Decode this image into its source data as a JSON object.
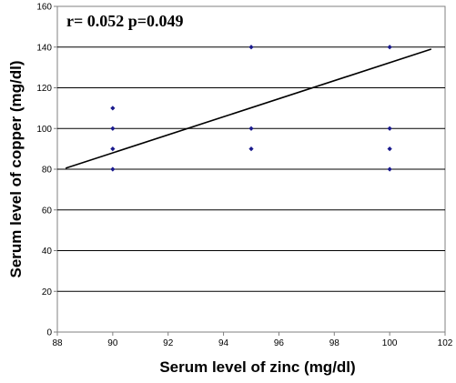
{
  "chart_data": {
    "type": "scatter",
    "annotation": "r= 0.052 p=0.049",
    "xlabel": "Serum level of zinc  (mg/dl)",
    "ylabel": "Serum level of copper (mg/dl)",
    "xlim": [
      88,
      102
    ],
    "ylim": [
      0,
      160
    ],
    "x_ticks": [
      "88",
      "90",
      "92",
      "94",
      "96",
      "98",
      "100",
      "102"
    ],
    "y_ticks": [
      "0",
      "20",
      "40",
      "60",
      "80",
      "100",
      "120",
      "140",
      "160"
    ],
    "grid": "horizontal",
    "legend": "none",
    "points": [
      {
        "x": 90,
        "y": 110
      },
      {
        "x": 90,
        "y": 100
      },
      {
        "x": 90,
        "y": 90
      },
      {
        "x": 90,
        "y": 80
      },
      {
        "x": 95,
        "y": 140
      },
      {
        "x": 95,
        "y": 100
      },
      {
        "x": 95,
        "y": 90
      },
      {
        "x": 100,
        "y": 140
      },
      {
        "x": 100,
        "y": 100
      },
      {
        "x": 100,
        "y": 90
      },
      {
        "x": 100,
        "y": 80
      }
    ],
    "trendline": {
      "x": [
        88.3,
        101.5
      ],
      "y": [
        80.5,
        139
      ]
    },
    "colors": {
      "marker": "#1a1a8c",
      "trendline": "#000000",
      "grid": "#000000",
      "axis": "#808080"
    }
  }
}
